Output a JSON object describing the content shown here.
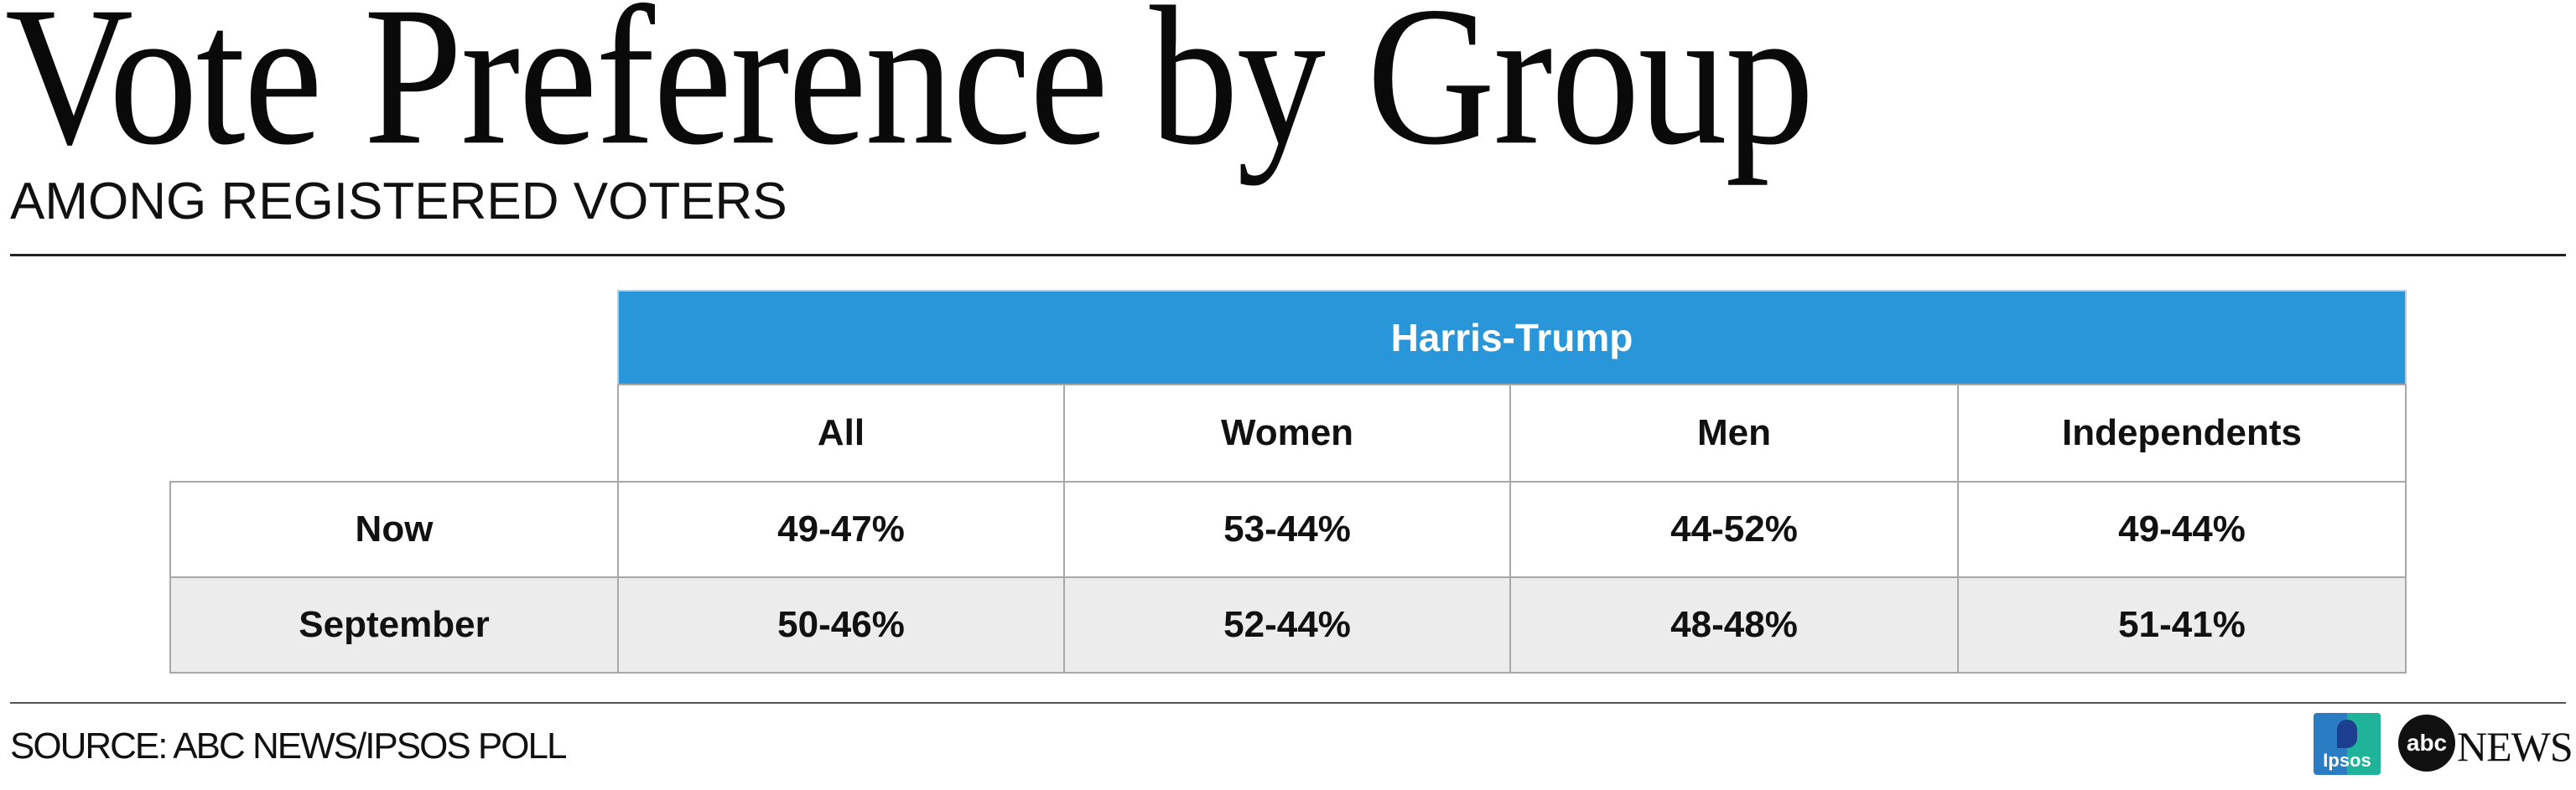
{
  "title": "Vote Preference by Group",
  "subtitle": "AMONG REGISTERED VOTERS",
  "source": "SOURCE: ABC NEWS/IPSOS POLL",
  "logos": {
    "ipsos": "Ipsos",
    "abc": "abc",
    "news": "NEWS"
  },
  "colors": {
    "header_band": "#2a96da",
    "alt_row": "#ececec",
    "border": "#a8a8a8"
  },
  "chart_data": {
    "type": "table",
    "title": "Vote Preference by Group",
    "subtitle": "AMONG REGISTERED VOTERS",
    "group_header": "Harris-Trump",
    "columns": [
      "All",
      "Women",
      "Men",
      "Independents"
    ],
    "rows": [
      {
        "label": "Now",
        "values": [
          "49-47%",
          "53-44%",
          "44-52%",
          "49-44%"
        ]
      },
      {
        "label": "September",
        "values": [
          "50-46%",
          "52-44%",
          "48-48%",
          "51-41%"
        ]
      }
    ]
  }
}
